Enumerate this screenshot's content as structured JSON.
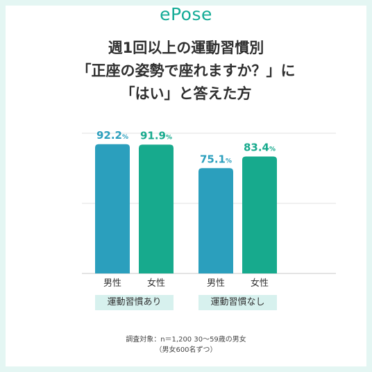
{
  "brand": {
    "logo_text": "ePose",
    "accent_color": "#13ab96"
  },
  "header": {
    "title_lines": [
      "週1回以上の運動習慣別",
      "「正座の姿勢で座れますか？」に",
      "「はい」と答えた方"
    ]
  },
  "chart_data": {
    "type": "bar",
    "title": "週1回以上の運動習慣別「正座の姿勢で座れますか？」に「はい」と答えた方",
    "unit": "%",
    "groups": [
      {
        "label": "運動習慣あり",
        "bars": [
          {
            "category": "男性",
            "value": 92.2,
            "color": "#2b9fbd"
          },
          {
            "category": "女性",
            "value": 91.9,
            "color": "#17aa8d"
          }
        ]
      },
      {
        "label": "運動習慣なし",
        "bars": [
          {
            "category": "男性",
            "value": 75.1,
            "color": "#2b9fbd"
          },
          {
            "category": "女性",
            "value": 83.4,
            "color": "#17aa8d"
          }
        ]
      }
    ],
    "colors": {
      "male": "#2b9fbd",
      "female": "#17aa8d"
    },
    "ylim": [
      0,
      100
    ],
    "grid": true,
    "gridline_values": [
      0,
      50,
      100
    ],
    "legend": "none"
  },
  "footnote": {
    "line1": "調査対象：n＝1,200 30～59歳の男女",
    "line2": "（男女600名ずつ）"
  }
}
